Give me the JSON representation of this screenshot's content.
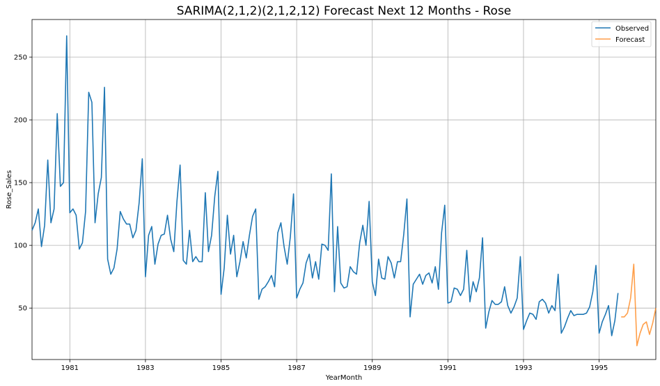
{
  "chart_data": {
    "type": "line",
    "title": "SARIMA(2,1,2)(2,1,2,12) Forecast Next 12 Months - Rose",
    "xlabel": "YearMonth",
    "ylabel": "Rose_Sales",
    "xlim": [
      1980.0,
      1996.5
    ],
    "ylim": [
      9,
      280
    ],
    "x_ticks": [
      1981,
      1983,
      1985,
      1987,
      1989,
      1991,
      1993,
      1995
    ],
    "y_ticks": [
      50,
      100,
      150,
      200,
      250
    ],
    "grid": true,
    "legend_position": "top-right",
    "series": [
      {
        "name": "Observed",
        "color": "#1f77b4",
        "start": 1980.0,
        "step": 0.0833333,
        "values": [
          112,
          118,
          129,
          99,
          116,
          168,
          118,
          129,
          205,
          147,
          150,
          267,
          126,
          129,
          124,
          97,
          102,
          127,
          222,
          214,
          118,
          141,
          154,
          226,
          89,
          77,
          82,
          97,
          127,
          121,
          117,
          117,
          106,
          112,
          134,
          169,
          75,
          108,
          115,
          85,
          101,
          108,
          109,
          124,
          105,
          95,
          135,
          164,
          88,
          85,
          112,
          87,
          91,
          87,
          87,
          142,
          95,
          108,
          139,
          159,
          61,
          82,
          124,
          93,
          108,
          75,
          87,
          103,
          90,
          108,
          123,
          129,
          57,
          65,
          67,
          71,
          76,
          67,
          110,
          118,
          99,
          85,
          107,
          141,
          58,
          65,
          70,
          86,
          93,
          74,
          87,
          73,
          101,
          100,
          96,
          157,
          63,
          115,
          70,
          66,
          67,
          83,
          79,
          77,
          102,
          116,
          100,
          135,
          71,
          60,
          89,
          74,
          73,
          91,
          86,
          74,
          87,
          87,
          109,
          137,
          43,
          69,
          73,
          77,
          69,
          76,
          78,
          70,
          83,
          65,
          110,
          132,
          54,
          55,
          66,
          65,
          60,
          65,
          96,
          55,
          71,
          63,
          74,
          106,
          34,
          47,
          56,
          53,
          53,
          55,
          67,
          52,
          46,
          51,
          58,
          91,
          33,
          40,
          46,
          45,
          41,
          55,
          57,
          54,
          46,
          52,
          48,
          77,
          30,
          35,
          42,
          48,
          44,
          45,
          45,
          45,
          46,
          51,
          63,
          84,
          30,
          39,
          45,
          52,
          28,
          40,
          62
        ]
      },
      {
        "name": "Forecast",
        "color": "#ff7f0e",
        "start": 1995.5833,
        "step": 0.0833333,
        "values": [
          43,
          43,
          46,
          58,
          85,
          20,
          30,
          37,
          39,
          29,
          38,
          50
        ]
      }
    ]
  }
}
